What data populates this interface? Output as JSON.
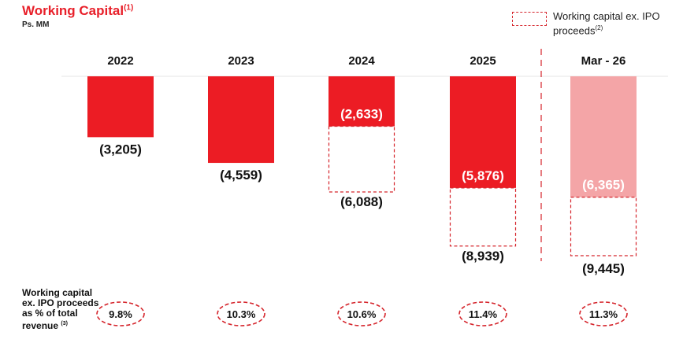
{
  "header": {
    "title": "Working Capital",
    "title_note": "(1)",
    "unit": "Ps. MM"
  },
  "legend": {
    "label": "Working capital ex. IPO proceeds",
    "note": "(2)"
  },
  "ratio_label": {
    "text": "Working capital ex. IPO proceeds as % of total revenue",
    "note": "(3)"
  },
  "colors": {
    "accent": "#e8202a",
    "bar": "#ec1c24",
    "projected_bar": "#f4a5a7",
    "dashed": "#d5242b"
  },
  "chart_data": {
    "type": "bar",
    "categories": [
      "2022",
      "2023",
      "2024",
      "2025",
      "Mar - 26"
    ],
    "series": [
      {
        "name": "Working Capital",
        "values": [
          -3205,
          -4559,
          -2633,
          -5876,
          -6365
        ],
        "labels": [
          "(3,205)",
          "(4,559)",
          "(2,633)",
          "(5,876)",
          "(6,365)"
        ]
      },
      {
        "name": "Working capital ex. IPO proceeds",
        "values": [
          null,
          null,
          -6088,
          -8939,
          -9445
        ],
        "labels": [
          "",
          "",
          "(6,088)",
          "(8,939)",
          "(9,445)"
        ]
      }
    ],
    "highlight_last": true,
    "ratios": [
      "9.8%",
      "10.3%",
      "10.6%",
      "11.4%",
      "11.3%"
    ],
    "ylim": [
      -9445,
      0
    ]
  }
}
